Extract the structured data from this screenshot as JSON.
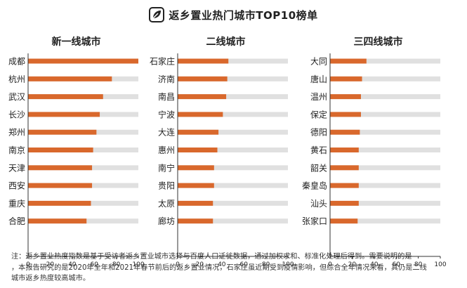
{
  "title": "返乡置业热门城市TOP10榜单",
  "logo_icon": "leaf-badge-icon",
  "colors": {
    "bar": "#D9682C",
    "track": "#E0E0E0",
    "axis": "#333333",
    "text": "#222222"
  },
  "chart_data": [
    {
      "type": "bar",
      "orientation": "horizontal",
      "title": "新一线城市",
      "categories": [
        "成都",
        "杭州",
        "武汉",
        "长沙",
        "郑州",
        "南京",
        "天津",
        "西安",
        "重庆",
        "合肥"
      ],
      "values": [
        100,
        76,
        68,
        65,
        62,
        59,
        58,
        58,
        57,
        53
      ],
      "track_max": 100,
      "xlim": [
        0,
        100
      ],
      "xticks": [
        0,
        20,
        40,
        60,
        80,
        100
      ]
    },
    {
      "type": "bar",
      "orientation": "horizontal",
      "title": "二线城市",
      "categories": [
        "石家庄",
        "济南",
        "南昌",
        "宁波",
        "大连",
        "惠州",
        "南宁",
        "贵阳",
        "太原",
        "廊坊"
      ],
      "values": [
        46,
        45,
        44,
        41,
        37,
        36,
        33,
        33,
        32,
        32
      ],
      "track_max": 100,
      "xlim": [
        0,
        100
      ],
      "xticks": [
        0,
        20,
        40,
        60,
        80,
        100
      ]
    },
    {
      "type": "bar",
      "orientation": "horizontal",
      "title": "三四线城市",
      "categories": [
        "大同",
        "唐山",
        "温州",
        "保定",
        "德阳",
        "黄石",
        "韶关",
        "秦皇岛",
        "汕头",
        "张家口"
      ],
      "values": [
        33,
        29,
        28,
        28,
        27,
        26,
        26,
        26,
        26,
        25
      ],
      "track_max": 100,
      "xlim": [
        0,
        100
      ],
      "xticks": [
        0,
        20,
        40,
        60,
        80,
        100
      ]
    }
  ],
  "note": [
    "注：返乡置业热度指数是基于受访者返乡置业城市选择与百度人口迁徙数据，通过加权求和、标准化处理后得到。需要说明的是",
    "，本报告研究的是2020年全年和2021年春节前后的返乡置业情况，石家庄虽近期受到疫情影响，但综合全年情况来看，其仍是二线",
    "城市返乡热度较高城市。"
  ]
}
